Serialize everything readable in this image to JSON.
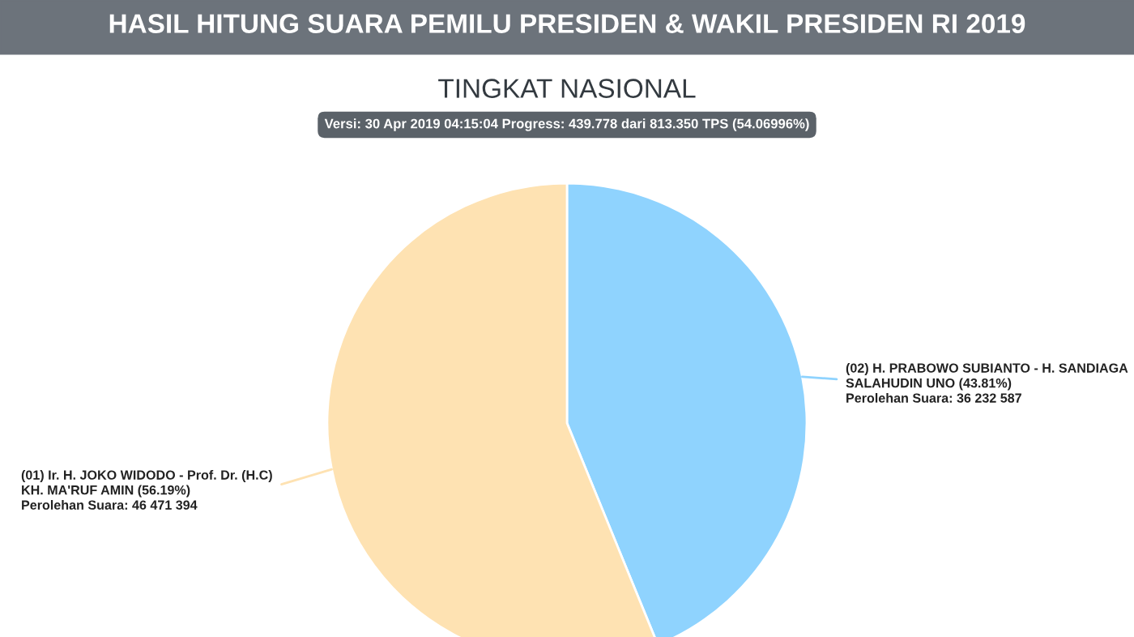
{
  "chart_data": {
    "type": "pie",
    "title": "HASIL HITUNG SUARA PEMILU PRESIDEN & WAKIL PRESIDEN RI 2019",
    "subtitle": "TINGKAT NASIONAL",
    "annotations": [
      "Versi: 30 Apr 2019 04:15:04 Progress: 439.778 dari 813.350 TPS (54.06996%)"
    ],
    "categories": [
      "(02) H. PRABOWO SUBIANTO - H. SANDIAGA\nSALAHUDIN UNO (43.81%)",
      "(01) Ir. H. JOKO WIDODO - Prof. Dr. (H.C)\nKH. MA'RUF AMIN (56.19%)"
    ],
    "values": [
      36232587,
      46471394
    ],
    "value_labels": [
      "Perolehan Suara: 36 232 587",
      "Perolehan Suara: 46 471 394"
    ],
    "colors": [
      "#8fd3fe",
      "#fee2b2"
    ]
  }
}
